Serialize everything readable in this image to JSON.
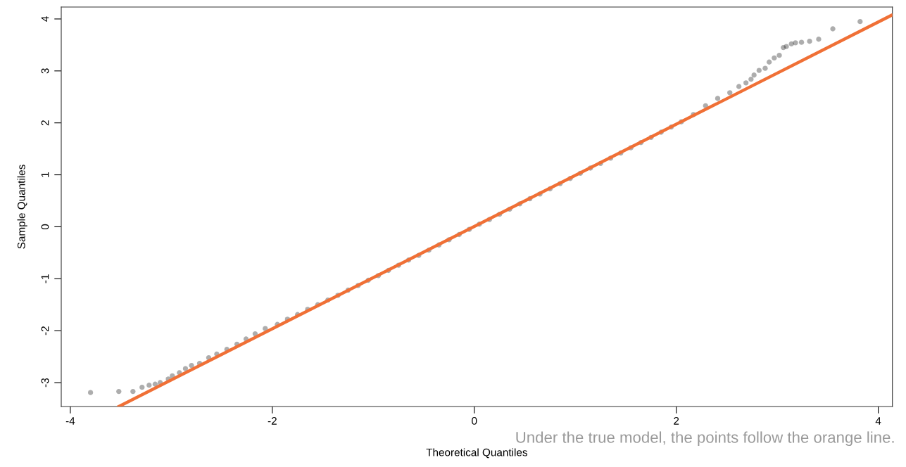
{
  "chart_data": {
    "type": "scatter",
    "xlabel": "Theoretical Quantiles",
    "ylabel": "Sample Quantiles",
    "annotations": [
      "Under the true model, the points follow the orange line."
    ],
    "xlim": [
      -4.09,
      4.14
    ],
    "ylim": [
      -3.46,
      4.23
    ],
    "xticks": [
      -4,
      -2,
      0,
      2,
      4
    ],
    "yticks": [
      -3,
      -2,
      -1,
      0,
      1,
      2,
      3,
      4
    ],
    "grid": false,
    "series": [
      {
        "marker": "circle",
        "color": "#000000",
        "x": [
          -3.8,
          -3.52,
          -3.38,
          -3.29,
          -3.22,
          -3.16,
          -3.11,
          -3.03,
          -2.99,
          -2.92,
          -2.86,
          -2.8,
          -2.72,
          -2.63,
          -2.55,
          -2.45,
          -2.35,
          -2.26,
          -2.17,
          -2.07,
          -1.95,
          -1.85,
          -1.75,
          -1.65,
          -1.55,
          -1.45,
          -1.35,
          -1.25,
          -1.15,
          -1.05,
          -0.95,
          -0.85,
          -0.75,
          -0.65,
          -0.55,
          -0.45,
          -0.35,
          -0.25,
          -0.15,
          -0.05,
          0.05,
          0.15,
          0.25,
          0.35,
          0.45,
          0.55,
          0.65,
          0.75,
          0.85,
          0.95,
          1.05,
          1.15,
          1.25,
          1.35,
          1.45,
          1.55,
          1.65,
          1.75,
          1.85,
          1.95,
          2.05,
          2.17,
          2.29,
          2.41,
          2.53,
          2.62,
          2.69,
          2.74,
          2.77,
          2.82,
          2.88,
          2.92,
          2.97,
          3.02,
          3.06,
          3.09,
          3.14,
          3.18,
          3.24,
          3.32,
          3.41,
          3.55,
          3.82
        ],
        "values": [
          -3.19,
          -3.17,
          -3.17,
          -3.09,
          -3.05,
          -3.03,
          -3.0,
          -2.93,
          -2.87,
          -2.81,
          -2.73,
          -2.67,
          -2.63,
          -2.52,
          -2.45,
          -2.36,
          -2.26,
          -2.16,
          -2.06,
          -1.96,
          -1.88,
          -1.78,
          -1.69,
          -1.59,
          -1.5,
          -1.41,
          -1.32,
          -1.22,
          -1.13,
          -1.03,
          -0.94,
          -0.84,
          -0.74,
          -0.64,
          -0.55,
          -0.45,
          -0.35,
          -0.25,
          -0.15,
          -0.05,
          0.05,
          0.14,
          0.24,
          0.34,
          0.44,
          0.54,
          0.63,
          0.73,
          0.83,
          0.93,
          1.03,
          1.13,
          1.22,
          1.32,
          1.42,
          1.52,
          1.62,
          1.72,
          1.82,
          1.92,
          2.02,
          2.16,
          2.33,
          2.47,
          2.58,
          2.7,
          2.77,
          2.84,
          2.92,
          3.01,
          3.05,
          3.17,
          3.25,
          3.3,
          3.45,
          3.47,
          3.52,
          3.54,
          3.55,
          3.57,
          3.61,
          3.81,
          3.95
        ]
      },
      {
        "type": "line",
        "color": "#f07036",
        "x": [
          -3.52,
          4.13
        ],
        "values": [
          -3.46,
          4.07
        ],
        "line_style": "solid"
      }
    ]
  }
}
